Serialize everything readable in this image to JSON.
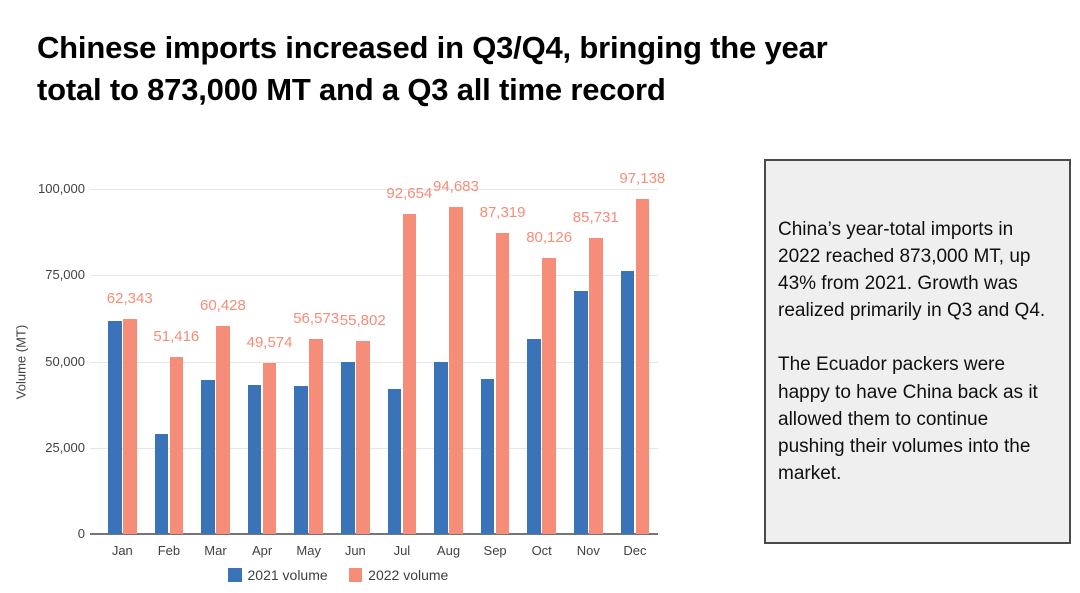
{
  "slide": {
    "title": "Chinese imports increased in Q3/Q4, bringing the year\ntotal to 873,000 MT and a Q3 all time record"
  },
  "chart_data": {
    "type": "bar",
    "title": "",
    "categories": [
      "Jan",
      "Feb",
      "Mar",
      "Apr",
      "May",
      "Jun",
      "Jul",
      "Aug",
      "Sep",
      "Oct",
      "Nov",
      "Dec"
    ],
    "series": [
      {
        "name": "2021 volume",
        "color": "#3b73b8",
        "values": [
          61700,
          29000,
          44500,
          43200,
          42900,
          50000,
          42000,
          50000,
          44800,
          56500,
          70400,
          76200
        ]
      },
      {
        "name": "2022 volume",
        "color": "#f58d78",
        "values": [
          62343,
          51416,
          60428,
          49574,
          56573,
          55802,
          92654,
          94683,
          87319,
          80126,
          85731,
          97138
        ],
        "value_labels": [
          "62,343",
          "51,416",
          "60,428",
          "49,574",
          "56,573",
          "55,802",
          "92,654",
          "94,683",
          "87,319",
          "80,126",
          "85,731",
          "97,138"
        ]
      }
    ],
    "xlabel": "",
    "ylabel": "Volume (MT)",
    "ylim": [
      0,
      100000
    ],
    "yticks": [
      0,
      25000,
      50000,
      75000,
      100000
    ],
    "ytick_labels": [
      "0",
      "25,000",
      "50,000",
      "75,000",
      "100,000"
    ],
    "grid": true,
    "legend_position": "bottom"
  },
  "note_box": {
    "paragraphs": [
      "China’s year-total imports in 2022 reached 873,000 MT, up 43% from 2021. Growth was realized primarily in Q3 and Q4.",
      "The Ecuador packers were happy to have China back as it allowed them to continue pushing their volumes into the market."
    ]
  },
  "colors": {
    "series_2021": "#3b73b8",
    "series_2022": "#f58d78",
    "annotation_text": "#f58d78",
    "gridline": "#e6e6e6",
    "axis_line": "#757575",
    "axis_text": "#424242",
    "legend_text": "#3c4043",
    "title_text": "#000000",
    "note_background": "#efefef",
    "note_border": "#4a4a4a",
    "background": "#ffffff"
  }
}
